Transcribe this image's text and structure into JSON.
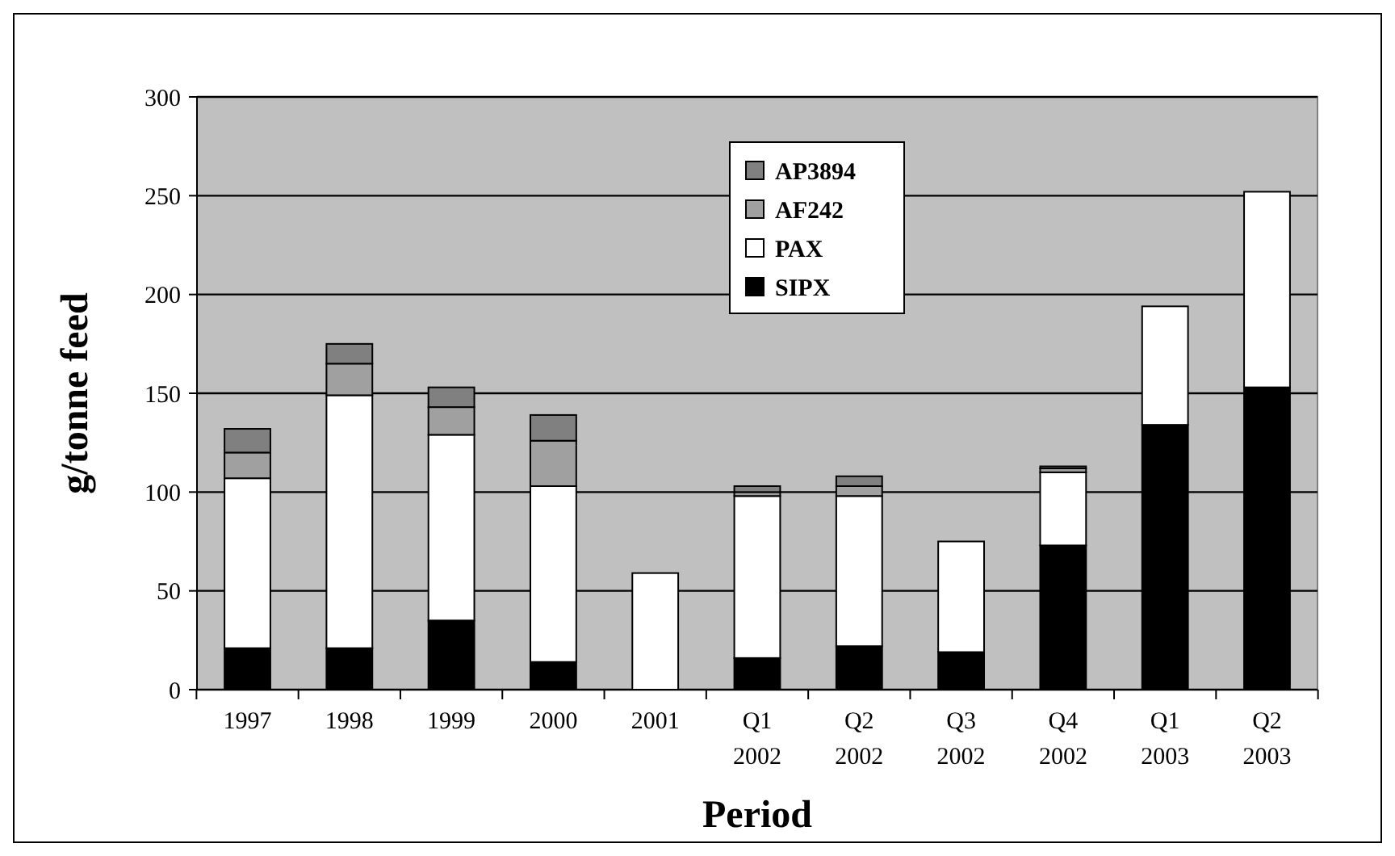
{
  "chart_data": {
    "type": "bar",
    "stacked": true,
    "xlabel": "Period",
    "ylabel": "g/tonne feed",
    "categories": [
      "1997",
      "1998",
      "1999",
      "2000",
      "2001",
      "Q1 2002",
      "Q2 2002",
      "Q3 2002",
      "Q4 2002",
      "Q1 2003",
      "Q2 2003"
    ],
    "series": [
      {
        "name": "SIPX",
        "color": "#000000",
        "values": [
          21,
          21,
          35,
          14,
          0,
          16,
          22,
          19,
          73,
          134,
          153
        ]
      },
      {
        "name": "PAX",
        "color": "#ffffff",
        "values": [
          86,
          128,
          94,
          89,
          59,
          82,
          76,
          56,
          37,
          60,
          99
        ]
      },
      {
        "name": "AF242",
        "color": "#a0a0a0",
        "values": [
          13,
          16,
          14,
          23,
          null,
          2,
          5,
          null,
          2,
          null,
          null
        ]
      },
      {
        "name": "AP3894",
        "color": "#808080",
        "values": [
          12,
          10,
          10,
          13,
          null,
          3,
          5,
          null,
          1,
          null,
          null
        ]
      }
    ],
    "ylim": [
      0,
      300
    ],
    "yticks": [
      0,
      50,
      100,
      150,
      200,
      250,
      300
    ],
    "grid": "y",
    "legend": "top"
  }
}
